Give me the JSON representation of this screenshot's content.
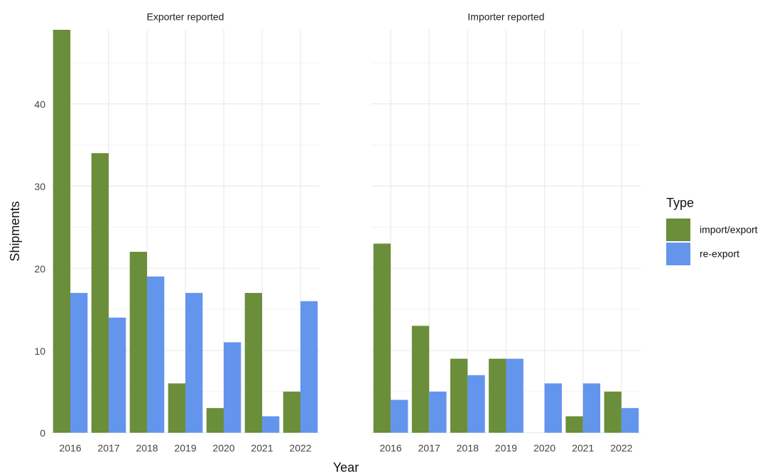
{
  "x_label": "Year",
  "y_label": "Shipments",
  "legend_title": "Type",
  "chart_data": [
    {
      "type": "bar",
      "title": "Exporter reported",
      "categories": [
        "2016",
        "2017",
        "2018",
        "2019",
        "2020",
        "2021",
        "2022"
      ],
      "series": [
        {
          "name": "import/export",
          "color": "#6b8e3a",
          "values": [
            49,
            34,
            22,
            6,
            3,
            17,
            5
          ]
        },
        {
          "name": "re-export",
          "color": "#6495ed",
          "values": [
            17,
            14,
            19,
            17,
            11,
            2,
            16
          ]
        }
      ],
      "ylim": [
        0,
        49
      ],
      "yticks": [
        0,
        10,
        20,
        30,
        40
      ],
      "minor_yticks": [
        5,
        15,
        25,
        35,
        45
      ],
      "grid": true
    },
    {
      "type": "bar",
      "title": "Importer reported",
      "categories": [
        "2016",
        "2017",
        "2018",
        "2019",
        "2020",
        "2021",
        "2022"
      ],
      "series": [
        {
          "name": "import/export",
          "color": "#6b8e3a",
          "values": [
            23,
            13,
            9,
            9,
            0,
            2,
            5
          ]
        },
        {
          "name": "re-export",
          "color": "#6495ed",
          "values": [
            4,
            5,
            7,
            9,
            6,
            6,
            3
          ]
        }
      ],
      "ylim": [
        0,
        49
      ],
      "yticks": [
        0,
        10,
        20,
        30,
        40
      ],
      "minor_yticks": [
        5,
        15,
        25,
        35,
        45
      ],
      "grid": true
    }
  ]
}
